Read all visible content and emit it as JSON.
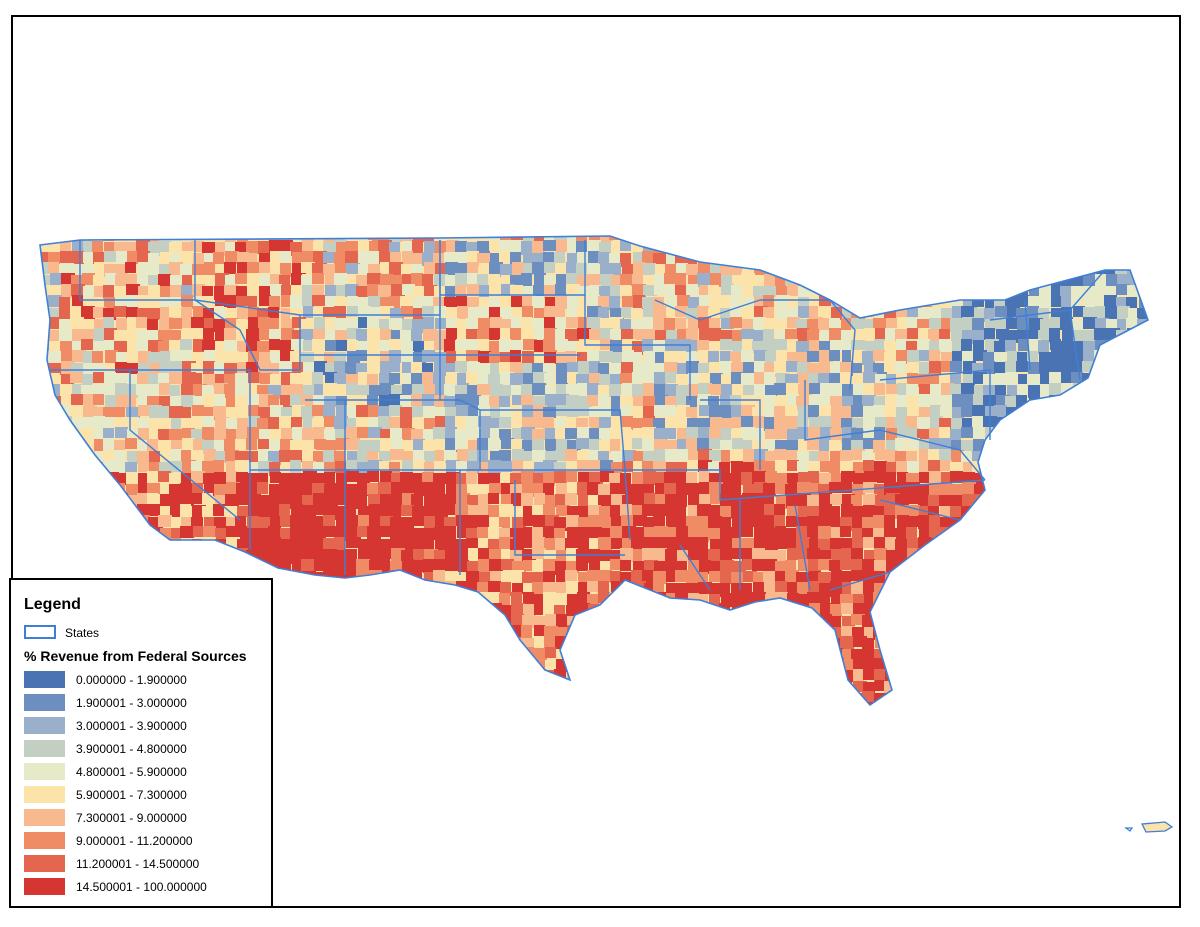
{
  "legend": {
    "title": "Legend",
    "states_label": "States",
    "variable_title": "% Revenue from Federal Sources",
    "state_outline_color": "#3f7fd6",
    "classes": [
      {
        "label": "0.000000 - 1.900000",
        "color": "#4a73b3"
      },
      {
        "label": "1.900001 - 3.000000",
        "color": "#6d8fc0"
      },
      {
        "label": "3.000001 - 3.900000",
        "color": "#9aafca"
      },
      {
        "label": "3.900001 - 4.800000",
        "color": "#c4cfc3"
      },
      {
        "label": "4.800001 - 5.900000",
        "color": "#e6eac8"
      },
      {
        "label": "5.900001 - 7.300000",
        "color": "#fbe3a9"
      },
      {
        "label": "7.300001 - 9.000000",
        "color": "#f7b98d"
      },
      {
        "label": "9.000001 - 11.200000",
        "color": "#ef8c66"
      },
      {
        "label": "11.200001 - 14.500000",
        "color": "#e5664f"
      },
      {
        "label": "14.500001 - 100.000000",
        "color": "#d63631"
      }
    ]
  }
}
